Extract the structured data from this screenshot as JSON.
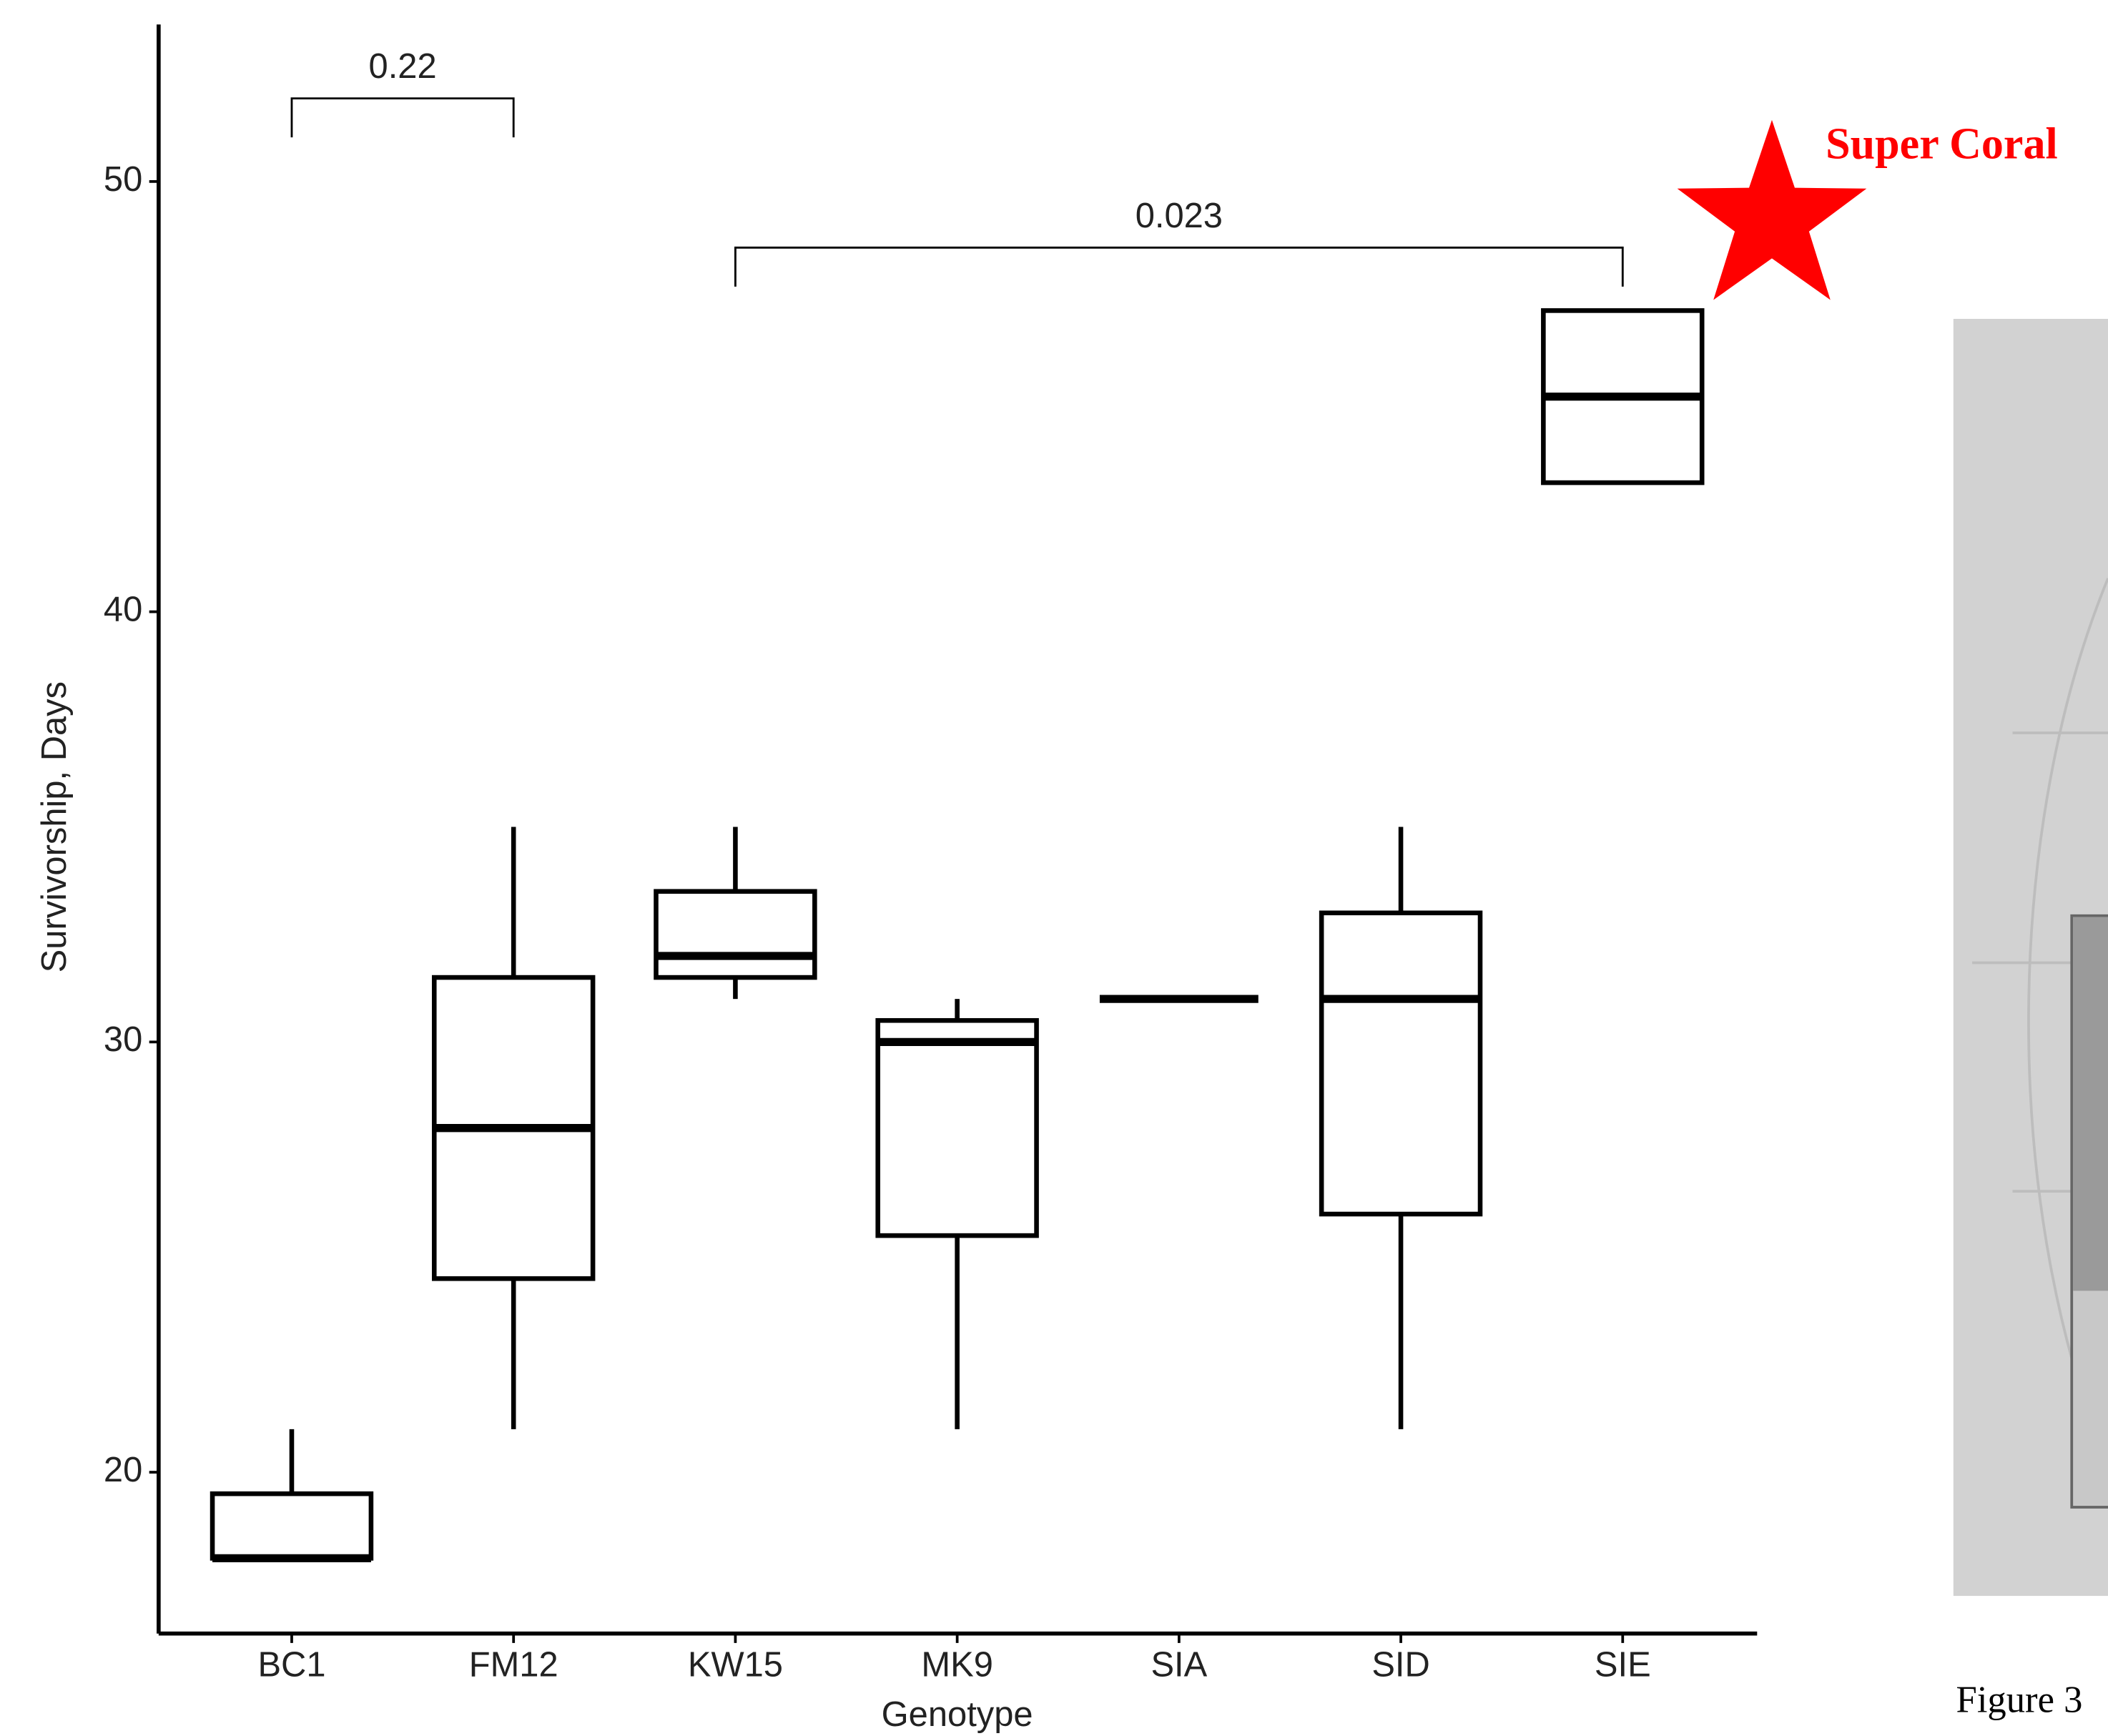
{
  "chart_data": {
    "type": "box",
    "x_label": "Genotype",
    "y_label": "Survivorship, Days",
    "categories": [
      "BC1",
      "FM12",
      "KW15",
      "MK9",
      "SIA",
      "SID",
      "SIE"
    ],
    "min": [
      18,
      21,
      31,
      21,
      31,
      21,
      43
    ],
    "q1": [
      18,
      24.5,
      31.5,
      25.5,
      31,
      26,
      43
    ],
    "median": [
      18,
      28,
      32,
      30,
      31,
      31,
      45
    ],
    "q3": [
      19.5,
      31.5,
      33.5,
      30.5,
      31,
      33,
      47
    ],
    "max": [
      21,
      35,
      35,
      31,
      31,
      35,
      47
    ],
    "ylim": [
      16.25,
      53.65
    ],
    "yticks": [
      20,
      30,
      40,
      50
    ],
    "color": "#000000",
    "comparisons": [
      {
        "label": "0.22",
        "from": "BC1",
        "to": "FM12"
      },
      {
        "label": "0.023",
        "from": "KW15",
        "to": "SIE"
      }
    ],
    "highlight": {
      "label": "Super Coral",
      "color": "#ff0000"
    }
  },
  "side_panel": {
    "caption": "Figure 3"
  }
}
